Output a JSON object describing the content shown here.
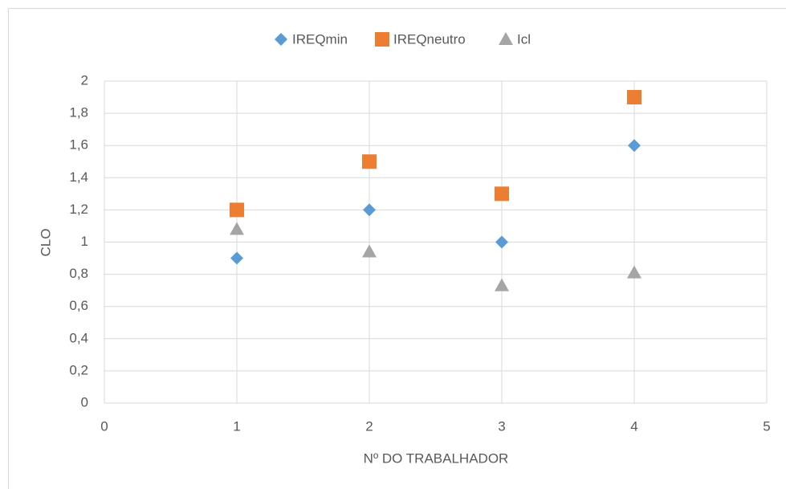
{
  "chart_data": {
    "type": "scatter",
    "xlabel": "Nº DO TRABALHADOR",
    "ylabel": "CLO",
    "x": [
      1,
      2,
      3,
      4
    ],
    "series": [
      {
        "name": "IREQmin",
        "color": "#5b9bd5",
        "marker": "diamond",
        "values": [
          0.9,
          1.2,
          1.0,
          1.6
        ]
      },
      {
        "name": "IREQneutro",
        "color": "#ed7d31",
        "marker": "square",
        "values": [
          1.2,
          1.5,
          1.3,
          1.9
        ]
      },
      {
        "name": "Icl",
        "color": "#a5a5a5",
        "marker": "triangle",
        "values": [
          1.08,
          0.94,
          0.73,
          0.81
        ]
      }
    ],
    "xlim": [
      0,
      5
    ],
    "xticks": [
      0,
      1,
      2,
      3,
      4,
      5
    ],
    "ylim": [
      0,
      2
    ],
    "yticks": [
      0,
      {
        "value": 0.2,
        "label": "0,2"
      },
      {
        "value": 0.4,
        "label": "0,4"
      },
      {
        "value": 0.6,
        "label": "0,6"
      },
      {
        "value": 0.8,
        "label": "0,8"
      },
      1,
      {
        "value": 1.2,
        "label": "1,2"
      },
      {
        "value": 1.4,
        "label": "1,4"
      },
      {
        "value": 1.6,
        "label": "1,6"
      },
      {
        "value": 1.8,
        "label": "1,8"
      },
      2
    ],
    "grid": true,
    "legend": "top"
  }
}
